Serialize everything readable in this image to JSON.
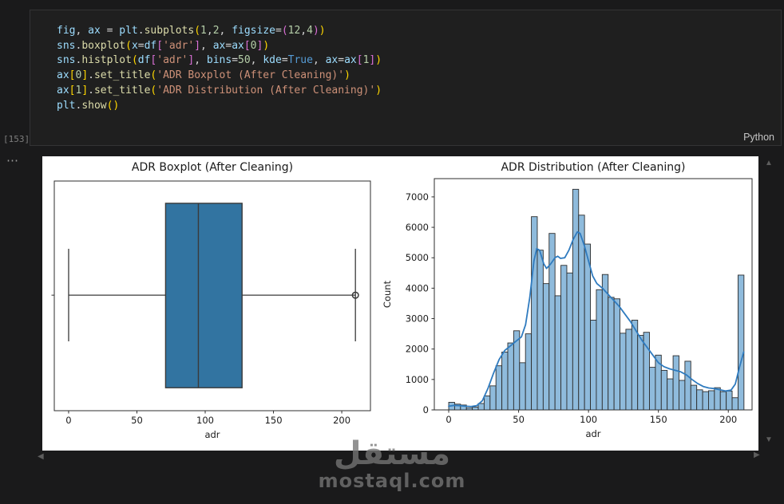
{
  "page": {
    "background": "#1a1a1b"
  },
  "cell": {
    "execution_count": "[153]",
    "language_label": "Python",
    "overflow_icon": "⋯",
    "token_colors": {
      "variable": "#9CDCFE",
      "operator": "#d4d4d4",
      "method": "#DCDCAA",
      "number": "#B5CEA8",
      "string": "#CE9178",
      "keyword": "#569CD6",
      "bracket1": "#FFD700",
      "bracket2": "#DA70D6"
    },
    "code_lines": [
      [
        [
          "v",
          "fig"
        ],
        [
          "o",
          ", "
        ],
        [
          "v",
          "ax"
        ],
        [
          "o",
          " = "
        ],
        [
          "v",
          "plt"
        ],
        [
          "o",
          "."
        ],
        [
          "m",
          "subplots"
        ],
        [
          "b1",
          "("
        ],
        [
          "n",
          "1"
        ],
        [
          "o",
          ","
        ],
        [
          "n",
          "2"
        ],
        [
          "o",
          ", "
        ],
        [
          "v",
          "figsize"
        ],
        [
          "o",
          "="
        ],
        [
          "b2",
          "("
        ],
        [
          "n",
          "12"
        ],
        [
          "o",
          ","
        ],
        [
          "n",
          "4"
        ],
        [
          "b2",
          ")"
        ],
        [
          "b1",
          ")"
        ]
      ],
      [
        [
          "v",
          "sns"
        ],
        [
          "o",
          "."
        ],
        [
          "m",
          "boxplot"
        ],
        [
          "b1",
          "("
        ],
        [
          "v",
          "x"
        ],
        [
          "o",
          "="
        ],
        [
          "v",
          "df"
        ],
        [
          "b2",
          "["
        ],
        [
          "s",
          "'adr'"
        ],
        [
          "b2",
          "]"
        ],
        [
          "o",
          ", "
        ],
        [
          "v",
          "ax"
        ],
        [
          "o",
          "="
        ],
        [
          "v",
          "ax"
        ],
        [
          "b2",
          "["
        ],
        [
          "n",
          "0"
        ],
        [
          "b2",
          "]"
        ],
        [
          "b1",
          ")"
        ]
      ],
      [
        [
          "v",
          "sns"
        ],
        [
          "o",
          "."
        ],
        [
          "m",
          "histplot"
        ],
        [
          "b1",
          "("
        ],
        [
          "v",
          "df"
        ],
        [
          "b2",
          "["
        ],
        [
          "s",
          "'adr'"
        ],
        [
          "b2",
          "]"
        ],
        [
          "o",
          ", "
        ],
        [
          "v",
          "bins"
        ],
        [
          "o",
          "="
        ],
        [
          "n",
          "50"
        ],
        [
          "o",
          ", "
        ],
        [
          "v",
          "kde"
        ],
        [
          "o",
          "="
        ],
        [
          "k",
          "True"
        ],
        [
          "o",
          ", "
        ],
        [
          "v",
          "ax"
        ],
        [
          "o",
          "="
        ],
        [
          "v",
          "ax"
        ],
        [
          "b2",
          "["
        ],
        [
          "n",
          "1"
        ],
        [
          "b2",
          "]"
        ],
        [
          "b1",
          ")"
        ]
      ],
      [
        [
          "v",
          "ax"
        ],
        [
          "b1",
          "["
        ],
        [
          "n",
          "0"
        ],
        [
          "b1",
          "]"
        ],
        [
          "o",
          "."
        ],
        [
          "m",
          "set_title"
        ],
        [
          "b1",
          "("
        ],
        [
          "s",
          "'ADR Boxplot (After Cleaning)'"
        ],
        [
          "b1",
          ")"
        ]
      ],
      [
        [
          "v",
          "ax"
        ],
        [
          "b1",
          "["
        ],
        [
          "n",
          "1"
        ],
        [
          "b1",
          "]"
        ],
        [
          "o",
          "."
        ],
        [
          "m",
          "set_title"
        ],
        [
          "b1",
          "("
        ],
        [
          "s",
          "'ADR Distribution (After Cleaning)'"
        ],
        [
          "b1",
          ")"
        ]
      ],
      [
        [
          "v",
          "plt"
        ],
        [
          "o",
          "."
        ],
        [
          "m",
          "show"
        ],
        [
          "b1",
          "("
        ],
        [
          "b1",
          ")"
        ]
      ]
    ]
  },
  "scrollbar": {
    "up": "▲",
    "down": "▼",
    "left": "◀",
    "right": "▶"
  },
  "watermark": {
    "arabic": "مستقل",
    "domain": "mostaql.com"
  },
  "chart_data": [
    {
      "type": "box",
      "orientation": "horizontal",
      "title": "ADR Boxplot (After Cleaning)",
      "xlabel": "adr",
      "xticks": [
        0,
        50,
        100,
        150,
        200
      ],
      "xlim": [
        -10.5,
        221
      ],
      "whisker_low": 0,
      "q1": 71,
      "median": 95,
      "q3": 127,
      "whisker_high": 210,
      "outliers": [
        210
      ],
      "box_color": "#3274a1",
      "edge_color": "#3a3a3a"
    },
    {
      "type": "bar",
      "subtype": "histogram+kde",
      "title": "ADR Distribution (After Cleaning)",
      "xlabel": "adr",
      "ylabel": "Count",
      "xticks": [
        0,
        50,
        100,
        150,
        200
      ],
      "yticks": [
        0,
        1000,
        2000,
        3000,
        4000,
        5000,
        6000,
        7000
      ],
      "xlim": [
        -10.3,
        217
      ],
      "ylim": [
        0,
        7600
      ],
      "bin_start": 0,
      "bin_width": 4.224,
      "values": [
        250,
        190,
        160,
        60,
        90,
        210,
        460,
        790,
        1450,
        1900,
        2200,
        2600,
        1550,
        2500,
        6350,
        5250,
        4150,
        5800,
        3750,
        4750,
        4500,
        7250,
        6400,
        5450,
        2950,
        3950,
        4450,
        3700,
        3650,
        2520,
        2650,
        2950,
        2450,
        2550,
        1400,
        1800,
        1300,
        1020,
        1780,
        970,
        1600,
        810,
        660,
        600,
        630,
        730,
        600,
        620,
        400,
        4430
      ],
      "kde": [
        [
          0,
          120
        ],
        [
          4,
          150
        ],
        [
          8,
          140
        ],
        [
          12,
          120
        ],
        [
          16,
          110
        ],
        [
          20,
          140
        ],
        [
          24,
          300
        ],
        [
          28,
          700
        ],
        [
          32,
          1200
        ],
        [
          36,
          1650
        ],
        [
          40,
          1950
        ],
        [
          44,
          2100
        ],
        [
          48,
          2250
        ],
        [
          52,
          2400
        ],
        [
          55,
          2800
        ],
        [
          58,
          3700
        ],
        [
          61,
          4900
        ],
        [
          63,
          5300
        ],
        [
          65,
          5250
        ],
        [
          68,
          4800
        ],
        [
          70,
          4650
        ],
        [
          73,
          4800
        ],
        [
          76,
          5000
        ],
        [
          78,
          5050
        ],
        [
          80,
          4980
        ],
        [
          83,
          5000
        ],
        [
          86,
          5250
        ],
        [
          89,
          5600
        ],
        [
          92,
          5850
        ],
        [
          94,
          5800
        ],
        [
          97,
          5400
        ],
        [
          100,
          4900
        ],
        [
          103,
          4400
        ],
        [
          106,
          4150
        ],
        [
          110,
          4000
        ],
        [
          114,
          3800
        ],
        [
          118,
          3600
        ],
        [
          122,
          3400
        ],
        [
          126,
          3150
        ],
        [
          130,
          2900
        ],
        [
          134,
          2600
        ],
        [
          138,
          2300
        ],
        [
          142,
          2050
        ],
        [
          146,
          1800
        ],
        [
          150,
          1550
        ],
        [
          154,
          1420
        ],
        [
          158,
          1350
        ],
        [
          162,
          1300
        ],
        [
          166,
          1250
        ],
        [
          170,
          1150
        ],
        [
          174,
          1000
        ],
        [
          178,
          870
        ],
        [
          182,
          770
        ],
        [
          186,
          720
        ],
        [
          190,
          700
        ],
        [
          194,
          660
        ],
        [
          198,
          620
        ],
        [
          202,
          650
        ],
        [
          205,
          850
        ],
        [
          208,
          1400
        ],
        [
          211,
          1900
        ]
      ],
      "bar_color": "#8fbbdc",
      "bar_edge_color": "#2d2d2d",
      "kde_color": "#2f7bbf",
      "grid": false,
      "legend": false
    }
  ]
}
